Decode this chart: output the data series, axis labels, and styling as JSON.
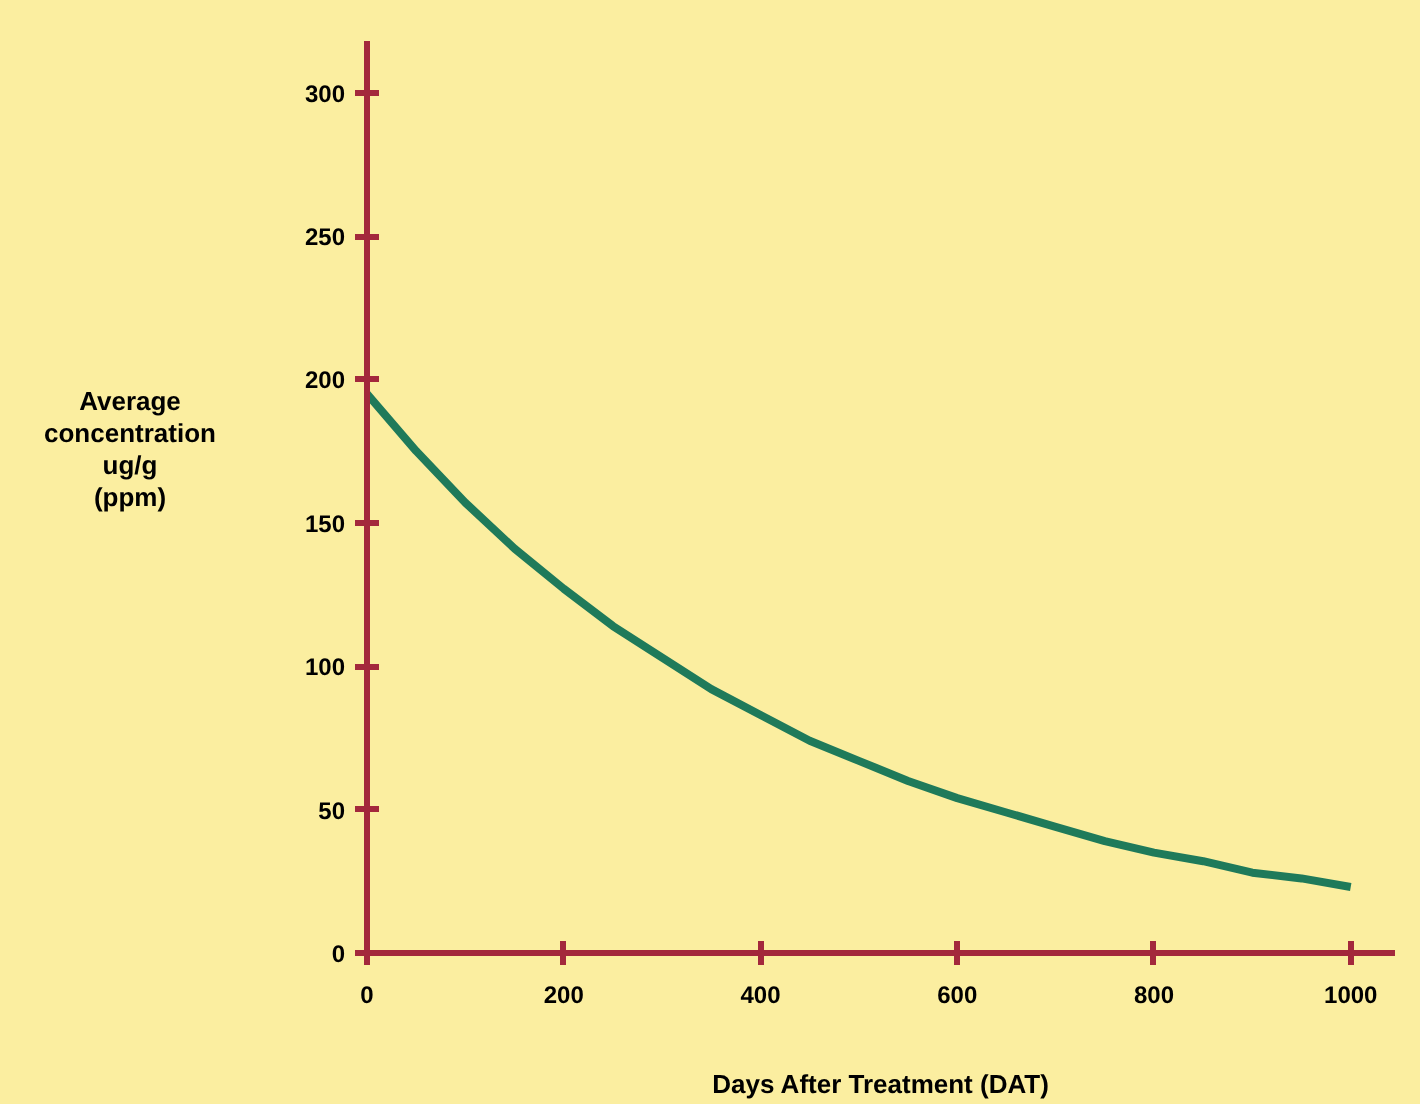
{
  "chart_data": {
    "type": "line",
    "xlabel": "Days After Treatment (DAT)",
    "ylabel": "Average concentration ug/g (ppm)",
    "x": [
      0,
      50,
      100,
      150,
      200,
      250,
      300,
      350,
      400,
      450,
      500,
      550,
      600,
      650,
      700,
      750,
      800,
      850,
      900,
      950,
      1000
    ],
    "series": [
      {
        "color": "#1f7a5a",
        "values": [
          195,
          175,
          157,
          141,
          127,
          114,
          103,
          92,
          83,
          74,
          67,
          60,
          54,
          49,
          44,
          39,
          35,
          32,
          28,
          26,
          23
        ]
      }
    ],
    "xlim": [
      0,
      1045
    ],
    "ylim": [
      0,
      318
    ],
    "xticks": [
      0,
      200,
      400,
      600,
      800,
      1000
    ],
    "yticks": [
      0,
      50,
      100,
      150,
      200,
      250,
      300
    ],
    "grid": false,
    "marker": "none",
    "line_style": "solid"
  }
}
